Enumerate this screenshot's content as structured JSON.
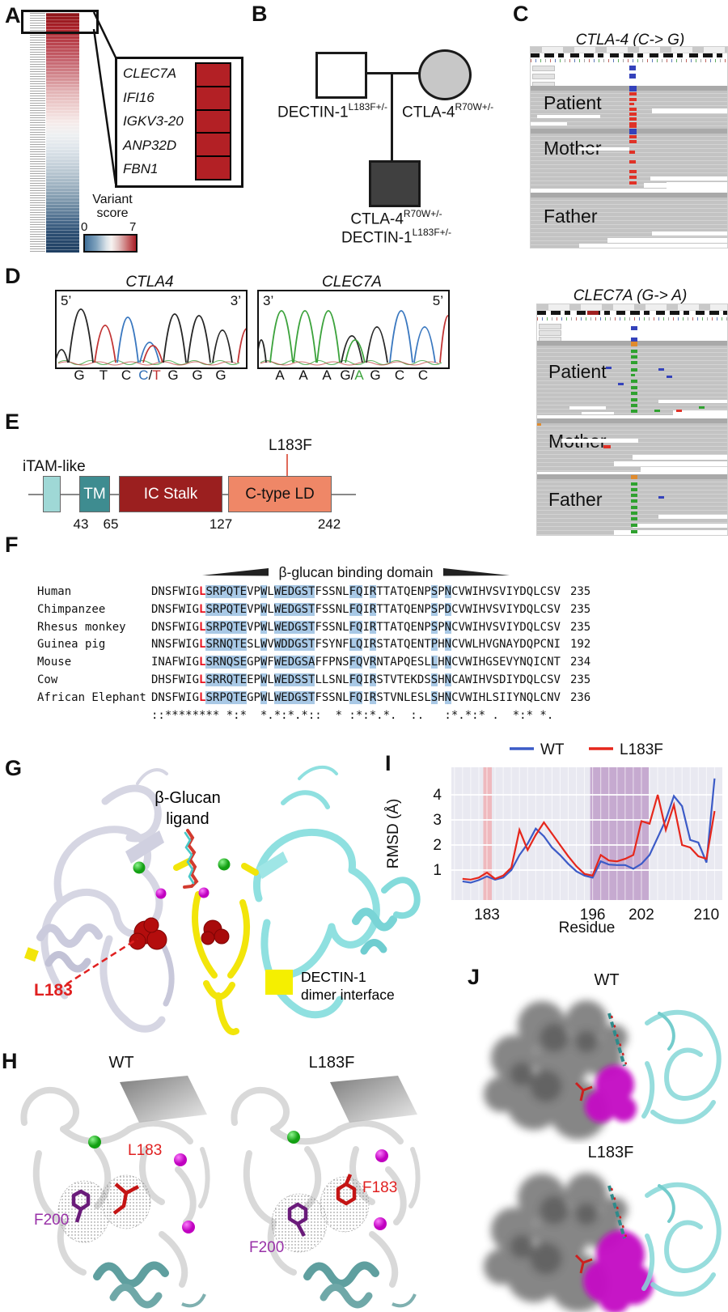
{
  "panels": {
    "A": {
      "label": "A",
      "inset_genes": [
        "CLEC7A",
        "IFI16",
        "IGKV3-20",
        "ANP32D",
        "FBN1"
      ],
      "colorbar": {
        "title1": "Variant",
        "title2": "score",
        "min": "0",
        "max": "7"
      },
      "heat_red": "#b32025",
      "heat_blue": "#1f3f62"
    },
    "B": {
      "label": "B",
      "father": {
        "base": "DECTIN-1",
        "sup": "L183F+/-"
      },
      "mother": {
        "base": "CTLA-4",
        "sup": "R70W+/-"
      },
      "child_line1": {
        "base": "CTLA-4",
        "sup": "R70W+/-"
      },
      "child_line2": {
        "base": "DECTIN-1",
        "sup": "L183F+/-"
      }
    },
    "C": {
      "label": "C",
      "top": {
        "title": "CTLA-4 (C-> G)",
        "variant_color": "red",
        "tracks": [
          "Patient",
          "Mother",
          "Father"
        ]
      },
      "bottom": {
        "title": "CLEC7A (G-> A)",
        "variant_color": "green",
        "tracks": [
          "Patient",
          "Mother",
          "Father"
        ]
      }
    },
    "D": {
      "label": "D",
      "left": {
        "title": "CTLA4",
        "end_left": "5’",
        "end_right": "3’",
        "bases": [
          [
            {
              "t": "G",
              "c": "#111"
            }
          ],
          [
            {
              "t": "T",
              "c": "#111"
            }
          ],
          [
            {
              "t": "C",
              "c": "#111"
            }
          ],
          [
            {
              "t": "C",
              "c": "#2f6db5"
            },
            {
              "t": "/",
              "c": "#111"
            },
            {
              "t": "T",
              "c": "#c03030"
            }
          ],
          [
            {
              "t": "G",
              "c": "#111"
            }
          ],
          [
            {
              "t": "G",
              "c": "#111"
            }
          ],
          [
            {
              "t": "G",
              "c": "#111"
            }
          ]
        ]
      },
      "right": {
        "title": "CLEC7A",
        "end_left": "3’",
        "end_right": "5’",
        "bases": [
          [
            {
              "t": "A",
              "c": "#111"
            }
          ],
          [
            {
              "t": "A",
              "c": "#111"
            }
          ],
          [
            {
              "t": "A",
              "c": "#111"
            }
          ],
          [
            {
              "t": "G",
              "c": "#111"
            },
            {
              "t": "/",
              "c": "#111"
            },
            {
              "t": "A",
              "c": "#3ca33c"
            }
          ],
          [
            {
              "t": "G",
              "c": "#111"
            }
          ],
          [
            {
              "t": "C",
              "c": "#111"
            }
          ],
          [
            {
              "t": "C",
              "c": "#111"
            }
          ]
        ]
      }
    },
    "E": {
      "label": "E",
      "itam": "iTAM-like",
      "tm": "TM",
      "stalk": "IC Stalk",
      "ctld": "C-type LD",
      "mutation": "L183F",
      "positions": [
        "43",
        "65",
        "127",
        "242"
      ],
      "colors": {
        "itam": "#9fd8d6",
        "tm": "#3e8c90",
        "stalk": "#9b1f1f",
        "ctld": "#ef8767"
      }
    },
    "F": {
      "label": "F",
      "header": "β-glucan binding domain",
      "rows": [
        {
          "name": "Human",
          "seq": "DNSFWIGLSRPQTEVPWLWEDGSTFSSNLFQIRTTATQENPSPNCVWIHVSVIYDQLCSV",
          "num": "235"
        },
        {
          "name": "Chimpanzee",
          "seq": "DNSFWIGLSRPQTEVPWLWEDGSTFSSNLFQIRTTATQENPSPDCVWIHVSVIYDQLCSV",
          "num": "235"
        },
        {
          "name": "Rhesus monkey",
          "seq": "DNSFWIGLSRPQTEVPWLWEDGSTFSSNLFQIRTTATQENPSPNCVWIHVSVIYDQLCSV",
          "num": "235"
        },
        {
          "name": "Guinea pig",
          "seq": "NNSFWIGLSRNQTESLWVWDDGSTFSYNFLQIRSTATQENTPHNCVWLHVGNAYDQPCNI",
          "num": "192"
        },
        {
          "name": "Mouse",
          "seq": "INAFWIGLSRNQSEGPWFWEDGSAFFPNSFQVRNTAPQESLLHNCVWIHGSEVYNQICNT",
          "num": "234"
        },
        {
          "name": "Cow",
          "seq": "DHSFWIGLSRRQTEEPWLWEDSSTLLSNLFQIRSTVTEKDSSHNCAWIHVSDIYDQLCSV",
          "num": "235"
        },
        {
          "name": "African Elephant",
          "seq": "DNSFWIGLSRPQTEGPWLWEDGSTFSSNLFQIRSTVNLESLSHNCVWIHLSIIYNQLCNV",
          "num": "236"
        }
      ],
      "consensus": "::******** *:*  *.*:*.*::  * :*:*.*.  :.   :*.*:* .  *:* *.",
      "red_col": 7,
      "highlight_cols": [
        [
          8,
          14
        ],
        [
          16,
          17
        ],
        [
          18,
          24
        ],
        [
          29,
          31
        ],
        [
          32,
          33
        ],
        [
          41,
          42
        ],
        [
          43,
          44
        ]
      ]
    },
    "G": {
      "label": "G",
      "ligand_line1": "β-Glucan",
      "ligand_line2": "ligand",
      "residue": "L183",
      "legend1": "DECTIN-1",
      "legend2": "dimer interface",
      "interface_color": "#f2e50a"
    },
    "H": {
      "label": "H",
      "title_wt": "WT",
      "title_mut": "L183F",
      "res_wt": "L183",
      "res_mut": "F183",
      "f200": "F200"
    },
    "I": {
      "label": "I"
    },
    "J": {
      "label": "J",
      "title_wt": "WT",
      "title_mut": "L183F"
    }
  },
  "chart_data": {
    "type": "line",
    "title": "",
    "xlabel": "Residue",
    "ylabel": "RMSD (Å)",
    "x": [
      180,
      181,
      182,
      183,
      184,
      185,
      186,
      187,
      188,
      189,
      190,
      191,
      192,
      193,
      194,
      195,
      196,
      197,
      198,
      199,
      200,
      201,
      202,
      203,
      204,
      205,
      206,
      207,
      208,
      209,
      210,
      211
    ],
    "series": [
      {
        "name": "WT",
        "color": "#3c5bc7",
        "values": [
          0.55,
          0.5,
          0.6,
          0.75,
          0.62,
          0.7,
          1.0,
          1.6,
          2.05,
          2.65,
          2.35,
          1.9,
          1.6,
          1.25,
          0.95,
          0.78,
          0.7,
          1.35,
          1.22,
          1.2,
          1.2,
          1.05,
          1.25,
          1.6,
          2.3,
          3.0,
          3.95,
          3.55,
          2.2,
          2.1,
          1.3,
          4.65
        ]
      },
      {
        "name": "L183F",
        "color": "#e6271c",
        "values": [
          0.65,
          0.62,
          0.7,
          0.9,
          0.65,
          0.78,
          1.1,
          2.6,
          1.8,
          2.4,
          2.9,
          2.45,
          2.0,
          1.55,
          1.15,
          0.85,
          0.78,
          1.6,
          1.38,
          1.35,
          1.45,
          1.6,
          2.95,
          2.85,
          4.0,
          2.6,
          3.6,
          2.0,
          1.9,
          1.55,
          1.45,
          3.35
        ]
      }
    ],
    "xticks": [
      183,
      196,
      202,
      210
    ],
    "yticks": [
      1,
      2,
      3,
      4
    ],
    "xlim": [
      178.5,
      212.0
    ],
    "ylim": [
      0.2,
      5.1
    ],
    "bands": [
      {
        "from": 182.55,
        "to": 183.6,
        "color": "#f0b4b8"
      },
      {
        "from": 195.7,
        "to": 202.9,
        "color": "#c2a3cc"
      }
    ],
    "plot_bg": "#e9e9f1",
    "grid": "white",
    "legend_position": "top"
  }
}
